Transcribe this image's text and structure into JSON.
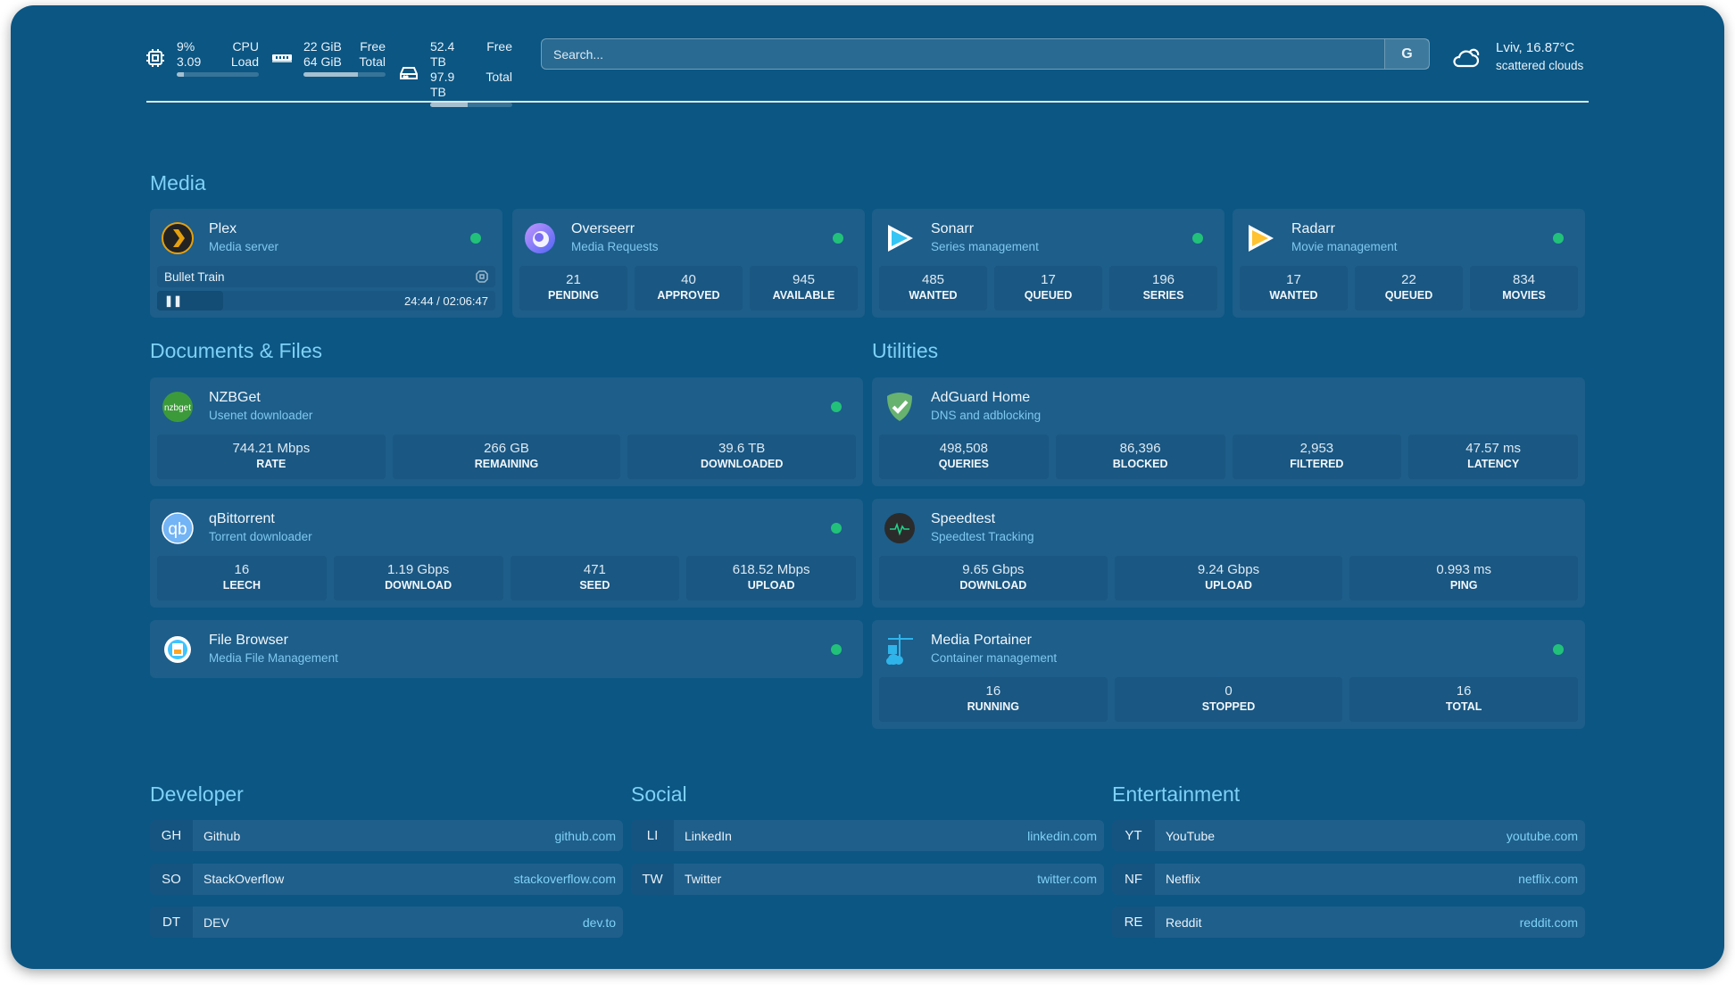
{
  "header": {
    "cpu": {
      "value": "9%",
      "load": "3.09",
      "label1": "CPU",
      "label2": "Load",
      "fill": 0.09
    },
    "memory": {
      "free": "22 GiB",
      "total": "64 GiB",
      "label1": "Free",
      "label2": "Total",
      "fill": 0.66
    },
    "disk": {
      "free": "52.4 TB",
      "total": "97.9 TB",
      "label1": "Free",
      "label2": "Total",
      "fill": 0.46
    },
    "search": {
      "placeholder": "Search...",
      "button": "G"
    },
    "weather": {
      "location": "Lviv, 16.87°C",
      "condition": "scattered clouds"
    }
  },
  "groups": {
    "media": "Media",
    "docs": "Documents & Files",
    "utilities": "Utilities",
    "developer": "Developer",
    "social": "Social",
    "entertainment": "Entertainment"
  },
  "services": {
    "plex": {
      "name": "Plex",
      "desc": "Media server",
      "status": "online",
      "now_playing": {
        "title": "Bullet Train",
        "time": "24:44 / 02:06:47",
        "progress": 0.195,
        "state": "playing"
      }
    },
    "overseerr": {
      "name": "Overseerr",
      "desc": "Media Requests",
      "status": "online",
      "stats": [
        {
          "v": "21",
          "l": "PENDING"
        },
        {
          "v": "40",
          "l": "APPROVED"
        },
        {
          "v": "945",
          "l": "AVAILABLE"
        }
      ]
    },
    "sonarr": {
      "name": "Sonarr",
      "desc": "Series management",
      "status": "online",
      "stats": [
        {
          "v": "485",
          "l": "WANTED"
        },
        {
          "v": "17",
          "l": "QUEUED"
        },
        {
          "v": "196",
          "l": "SERIES"
        }
      ]
    },
    "radarr": {
      "name": "Radarr",
      "desc": "Movie management",
      "status": "online",
      "stats": [
        {
          "v": "17",
          "l": "WANTED"
        },
        {
          "v": "22",
          "l": "QUEUED"
        },
        {
          "v": "834",
          "l": "MOVIES"
        }
      ]
    },
    "nzbget": {
      "name": "NZBGet",
      "desc": "Usenet downloader",
      "status": "online",
      "icon_text": "nzbget",
      "stats": [
        {
          "v": "744.21 Mbps",
          "l": "RATE"
        },
        {
          "v": "266 GB",
          "l": "REMAINING"
        },
        {
          "v": "39.6 TB",
          "l": "DOWNLOADED"
        }
      ]
    },
    "qbittorrent": {
      "name": "qBittorrent",
      "desc": "Torrent downloader",
      "status": "online",
      "icon_text": "qb",
      "stats": [
        {
          "v": "16",
          "l": "LEECH"
        },
        {
          "v": "1.19 Gbps",
          "l": "DOWNLOAD"
        },
        {
          "v": "471",
          "l": "SEED"
        },
        {
          "v": "618.52 Mbps",
          "l": "UPLOAD"
        }
      ]
    },
    "filebrowser": {
      "name": "File Browser",
      "desc": "Media File Management",
      "status": "online"
    },
    "adguard": {
      "name": "AdGuard Home",
      "desc": "DNS and adblocking",
      "stats": [
        {
          "v": "498,508",
          "l": "QUERIES"
        },
        {
          "v": "86,396",
          "l": "BLOCKED"
        },
        {
          "v": "2,953",
          "l": "FILTERED"
        },
        {
          "v": "47.57 ms",
          "l": "LATENCY"
        }
      ]
    },
    "speedtest": {
      "name": "Speedtest",
      "desc": "Speedtest Tracking",
      "stats": [
        {
          "v": "9.65 Gbps",
          "l": "DOWNLOAD"
        },
        {
          "v": "9.24 Gbps",
          "l": "UPLOAD"
        },
        {
          "v": "0.993 ms",
          "l": "PING"
        }
      ]
    },
    "portainer": {
      "name": "Media Portainer",
      "desc": "Container management",
      "status": "online",
      "stats": [
        {
          "v": "16",
          "l": "RUNNING"
        },
        {
          "v": "0",
          "l": "STOPPED"
        },
        {
          "v": "16",
          "l": "TOTAL"
        }
      ]
    }
  },
  "bookmarks": {
    "developer": [
      {
        "abbr": "GH",
        "name": "Github",
        "url": "github.com"
      },
      {
        "abbr": "SO",
        "name": "StackOverflow",
        "url": "stackoverflow.com"
      },
      {
        "abbr": "DT",
        "name": "DEV",
        "url": "dev.to"
      }
    ],
    "social": [
      {
        "abbr": "LI",
        "name": "LinkedIn",
        "url": "linkedin.com"
      },
      {
        "abbr": "TW",
        "name": "Twitter",
        "url": "twitter.com"
      }
    ],
    "entertainment": [
      {
        "abbr": "YT",
        "name": "YouTube",
        "url": "youtube.com"
      },
      {
        "abbr": "NF",
        "name": "Netflix",
        "url": "netflix.com"
      },
      {
        "abbr": "RE",
        "name": "Reddit",
        "url": "reddit.com"
      }
    ]
  },
  "colors": {
    "background": "#0b5683",
    "card": "#1d5e8a",
    "accent": "#7fd1f7",
    "status_online": "#22c17a"
  }
}
